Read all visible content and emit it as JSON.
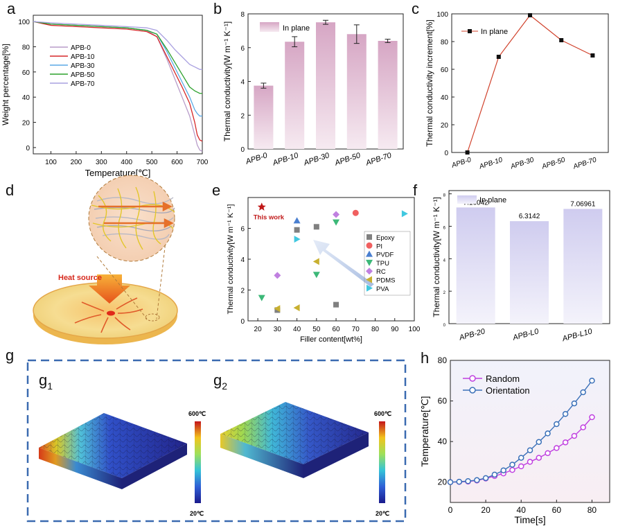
{
  "panel_letters": {
    "a": "a",
    "b": "b",
    "c": "c",
    "d": "d",
    "e": "e",
    "f": "f",
    "g": "g",
    "g1": "g",
    "g1_sub": "1",
    "g2": "g",
    "g2_sub": "2",
    "h": "h"
  },
  "panel_d": {
    "heat_source_label": "Heat source"
  },
  "panel_g": {
    "g1_scale_top": "600℃",
    "g1_scale_bottom": "20℃",
    "g2_scale_top": "600℃",
    "g2_scale_bottom": "20℃"
  },
  "colors": {
    "line_pink": "#cc2222",
    "bar_pink": "#e6c3d7",
    "bar_lavender": "#dcdaf3",
    "dash_blue": "#3a6ab0"
  },
  "chart_data": [
    {
      "id": "a",
      "type": "line",
      "xlabel": "Temperature[℃]",
      "ylabel": "Weight percentage[%]",
      "xlim": [
        30,
        700
      ],
      "ylim": [
        -5,
        105
      ],
      "xticks": [
        100,
        200,
        300,
        400,
        500,
        600,
        700
      ],
      "yticks": [
        0,
        20,
        40,
        60,
        80,
        100
      ],
      "series": [
        {
          "name": "APB-0",
          "color": "#b89cc9",
          "x": [
            30,
            100,
            200,
            300,
            400,
            480,
            520,
            560,
            590,
            620,
            650,
            670,
            680,
            690,
            700
          ],
          "y": [
            100,
            98,
            97,
            96,
            95,
            93,
            88,
            70,
            55,
            40,
            25,
            10,
            2,
            -2,
            -3
          ]
        },
        {
          "name": "APB-10",
          "color": "#d62728",
          "x": [
            30,
            100,
            200,
            300,
            400,
            480,
            520,
            560,
            590,
            620,
            650,
            670,
            680,
            690,
            700
          ],
          "y": [
            100,
            97,
            96,
            95,
            94,
            92,
            88,
            72,
            60,
            48,
            35,
            20,
            10,
            6,
            5
          ]
        },
        {
          "name": "APB-30",
          "color": "#5aa9e6",
          "x": [
            30,
            100,
            200,
            300,
            400,
            480,
            520,
            560,
            590,
            620,
            650,
            670,
            680,
            690,
            700
          ],
          "y": [
            100,
            98,
            97,
            96,
            95,
            93,
            90,
            76,
            64,
            52,
            40,
            30,
            27,
            25,
            25
          ]
        },
        {
          "name": "APB-50",
          "color": "#2ca02c",
          "x": [
            30,
            100,
            200,
            300,
            400,
            480,
            520,
            560,
            590,
            620,
            650,
            670,
            680,
            690,
            700
          ],
          "y": [
            100,
            98,
            97,
            96,
            95,
            93,
            90,
            78,
            68,
            58,
            48,
            45,
            44,
            43,
            43
          ]
        },
        {
          "name": "APB-70",
          "color": "#a9a0e0",
          "x": [
            30,
            100,
            200,
            300,
            400,
            480,
            520,
            560,
            590,
            620,
            650,
            670,
            680,
            690,
            700
          ],
          "y": [
            100,
            99,
            98,
            97,
            96,
            95,
            93,
            85,
            78,
            72,
            66,
            64,
            63,
            62,
            62
          ]
        }
      ]
    },
    {
      "id": "b",
      "type": "bar",
      "xlabel": "",
      "ylabel": "Thermal conductivity[W m⁻¹ K⁻¹]",
      "ylim": [
        0,
        8
      ],
      "yticks": [
        0,
        2,
        4,
        6,
        8
      ],
      "legend": "In plane",
      "categories": [
        "APB-0",
        "APB-10",
        "APB-30",
        "APB-50",
        "APB-70"
      ],
      "values": [
        3.75,
        6.35,
        7.5,
        6.8,
        6.4
      ],
      "errors": [
        0.15,
        0.3,
        0.12,
        0.55,
        0.1
      ]
    },
    {
      "id": "c",
      "type": "line",
      "xlabel": "",
      "ylabel": "Thermal conductivity increment[%]",
      "ylim": [
        0,
        100
      ],
      "yticks": [
        0,
        20,
        40,
        60,
        80,
        100
      ],
      "legend": "In plane",
      "categories": [
        "APB-0",
        "APB-10",
        "APB-30",
        "APB-50",
        "APB-70"
      ],
      "values": [
        0,
        69,
        99,
        81,
        70
      ]
    },
    {
      "id": "e",
      "type": "scatter",
      "xlabel": "Filler content[wt%]",
      "ylabel": "Thermal conductivity[W m⁻¹ K⁻¹]",
      "xlim": [
        15,
        100
      ],
      "ylim": [
        0,
        8
      ],
      "xticks": [
        20,
        30,
        40,
        50,
        60,
        70,
        80,
        90,
        100
      ],
      "yticks": [
        0,
        2,
        4,
        6
      ],
      "annotation": "This work",
      "this_work": {
        "x": 22,
        "y": 7.4
      },
      "series": [
        {
          "name": "Epoxy",
          "marker": "square",
          "color": "#808080",
          "x": [
            30,
            40,
            50,
            60
          ],
          "y": [
            0.7,
            5.9,
            6.1,
            1.05
          ]
        },
        {
          "name": "PI",
          "marker": "circle",
          "color": "#f06060",
          "x": [
            70
          ],
          "y": [
            7.0
          ]
        },
        {
          "name": "PVDF",
          "marker": "triangle-up",
          "color": "#4a7fd0",
          "x": [
            40
          ],
          "y": [
            6.5
          ]
        },
        {
          "name": "TPU",
          "marker": "triangle-down",
          "color": "#3cb878",
          "x": [
            22,
            50,
            60
          ],
          "y": [
            1.5,
            3.0,
            6.4
          ]
        },
        {
          "name": "RC",
          "marker": "diamond",
          "color": "#c080e0",
          "x": [
            30,
            60
          ],
          "y": [
            2.95,
            6.9
          ]
        },
        {
          "name": "PDMS",
          "marker": "triangle-left",
          "color": "#c8b030",
          "x": [
            30,
            40,
            50
          ],
          "y": [
            0.8,
            0.85,
            3.85
          ]
        },
        {
          "name": "PVA",
          "marker": "triangle-right",
          "color": "#40c8e0",
          "x": [
            40,
            95
          ],
          "y": [
            5.3,
            6.95
          ]
        }
      ]
    },
    {
      "id": "f",
      "type": "bar",
      "xlabel": "",
      "ylabel": "Thermal conductivity[W m⁻¹ K⁻¹]",
      "ylim": [
        0,
        8.2
      ],
      "yticks": [
        0,
        2,
        4,
        6,
        8
      ],
      "legend": "In plane",
      "categories": [
        "APB-20",
        "APB-L0",
        "APB-L10"
      ],
      "values": [
        7.16042,
        6.3142,
        7.06961
      ],
      "value_labels": [
        "7.16042",
        "6.3142",
        "7.06961"
      ]
    },
    {
      "id": "h",
      "type": "line",
      "xlabel": "Time[s]",
      "ylabel": "Temperature[℃]",
      "xlim": [
        0,
        90
      ],
      "ylim": [
        10,
        80
      ],
      "xticks": [
        0,
        20,
        40,
        60,
        80
      ],
      "yticks": [
        20,
        40,
        60,
        80
      ],
      "series": [
        {
          "name": "Random",
          "color": "#c040e0",
          "x": [
            0,
            5,
            10,
            15,
            20,
            25,
            30,
            35,
            40,
            45,
            50,
            55,
            60,
            65,
            70,
            75,
            80
          ],
          "y": [
            20,
            20.1,
            20.3,
            20.8,
            21.8,
            23,
            24.3,
            26,
            27.8,
            30,
            32,
            34.3,
            36.8,
            39.6,
            42.8,
            47,
            52
          ]
        },
        {
          "name": "Orientation",
          "color": "#3a70b8",
          "x": [
            0,
            5,
            10,
            15,
            20,
            25,
            30,
            35,
            40,
            45,
            50,
            55,
            60,
            65,
            70,
            75,
            80
          ],
          "y": [
            20,
            20.2,
            20.5,
            21,
            22,
            23.7,
            25.8,
            28.6,
            32,
            35.7,
            39.8,
            44,
            48.6,
            53.6,
            58.8,
            64.3,
            70
          ]
        }
      ]
    }
  ]
}
